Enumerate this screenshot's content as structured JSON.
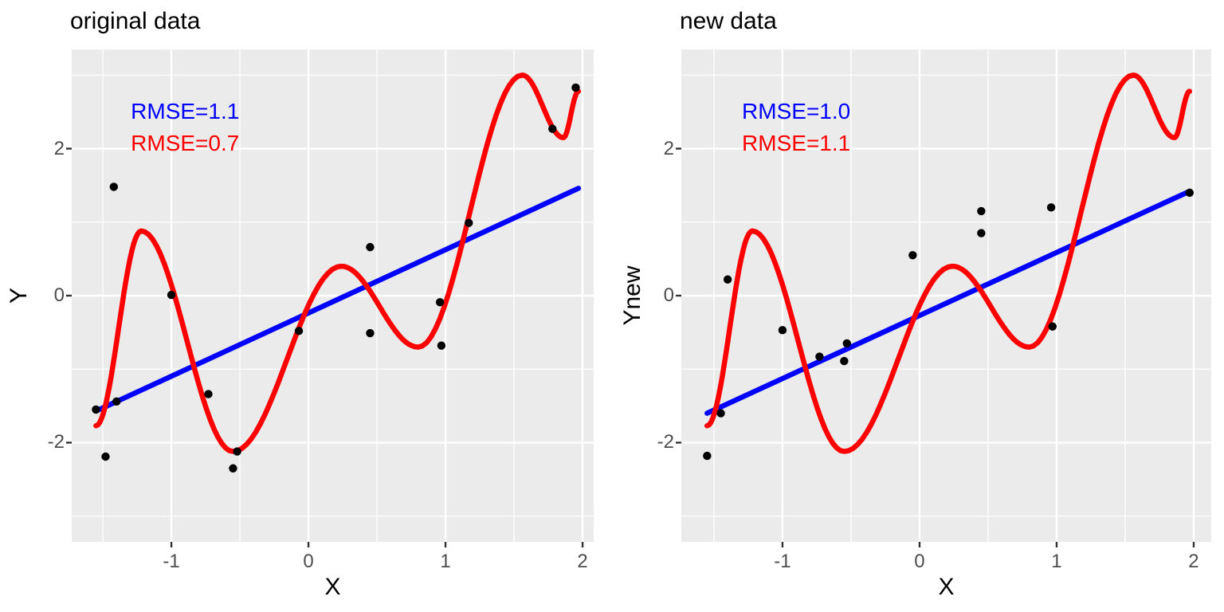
{
  "figure_style": {
    "background": "#FFFFFF",
    "panel_background": "#EBEBEB",
    "grid_color": "#FFFFFF",
    "axis_text_color": "#4D4D4D",
    "tick_mark_color": "#333333",
    "point_color": "#000000",
    "linear_fit_color": "#0000FF",
    "poly_fit_color": "#FF0000"
  },
  "chart_data": [
    {
      "type": "scatter",
      "title": "original data",
      "xlabel": "X",
      "ylabel": "Y",
      "xlim": [
        -1.727,
        2.081
      ],
      "ylim": [
        -3.35,
        3.35
      ],
      "grid": true,
      "legend": "none",
      "x_ticks": {
        "major": [
          {
            "v": -1,
            "label": "-1"
          },
          {
            "v": 0,
            "label": "0"
          },
          {
            "v": 1,
            "label": "1"
          },
          {
            "v": 2,
            "label": "2"
          }
        ],
        "minor": [
          -1.5,
          -0.5,
          0.5,
          1.5
        ]
      },
      "y_ticks": {
        "major": [
          {
            "v": -2,
            "label": "-2"
          },
          {
            "v": 0,
            "label": "0"
          },
          {
            "v": 2,
            "label": "2"
          }
        ],
        "minor": [
          -3,
          -1,
          1,
          3
        ]
      },
      "points": [
        [
          -1.42,
          1.48
        ],
        [
          -1.0,
          0.01
        ],
        [
          -1.55,
          -1.55
        ],
        [
          -1.4,
          -1.44
        ],
        [
          -1.48,
          -2.19
        ],
        [
          -0.73,
          -1.34
        ],
        [
          -0.52,
          -2.12
        ],
        [
          -0.55,
          -2.35
        ],
        [
          -0.07,
          -0.48
        ],
        [
          0.45,
          0.66
        ],
        [
          0.45,
          -0.51
        ],
        [
          0.96,
          -0.09
        ],
        [
          0.97,
          -0.68
        ],
        [
          1.17,
          0.99
        ],
        [
          1.78,
          2.27
        ],
        [
          1.95,
          2.83
        ]
      ],
      "fits": [
        {
          "name": "linear-fit",
          "color": "#0000FF",
          "rmse": 1.1,
          "line": [
            [
              -1.55,
              -1.57
            ],
            [
              1.97,
              1.46
            ]
          ]
        },
        {
          "name": "poly-fit",
          "color": "#FF0000",
          "rmse": 0.7,
          "curve_keypoints": [
            [
              -1.55,
              -1.77
            ],
            [
              -1.22,
              0.88
            ],
            [
              -0.55,
              -2.12
            ],
            [
              0.24,
              0.4
            ],
            [
              0.8,
              -0.7
            ],
            [
              1.56,
              3.0
            ],
            [
              1.86,
              2.15
            ],
            [
              1.97,
              2.78
            ]
          ]
        }
      ],
      "annotations": [
        {
          "text": "RMSE=1.1",
          "color": "#0000FF",
          "x": -0.9,
          "y": 2.5
        },
        {
          "text": "RMSE=0.7",
          "color": "#FF0000",
          "x": -0.9,
          "y": 2.07
        }
      ]
    },
    {
      "type": "scatter",
      "title": "new data",
      "xlabel": "X",
      "ylabel": "Ynew",
      "xlim": [
        -1.738,
        2.128
      ],
      "ylim": [
        -3.35,
        3.35
      ],
      "grid": true,
      "legend": "none",
      "x_ticks": {
        "major": [
          {
            "v": -1,
            "label": "-1"
          },
          {
            "v": 0,
            "label": "0"
          },
          {
            "v": 1,
            "label": "1"
          },
          {
            "v": 2,
            "label": "2"
          }
        ],
        "minor": [
          -1.5,
          -0.5,
          0.5,
          1.5
        ]
      },
      "y_ticks": {
        "major": [
          {
            "v": -2,
            "label": "-2"
          },
          {
            "v": 0,
            "label": "0"
          },
          {
            "v": 2,
            "label": "2"
          }
        ],
        "minor": [
          -3,
          -1,
          1,
          3
        ]
      },
      "points": [
        [
          -1.55,
          -2.18
        ],
        [
          -1.45,
          -1.6
        ],
        [
          -1.4,
          0.22
        ],
        [
          -1.0,
          -0.47
        ],
        [
          -0.73,
          -0.83
        ],
        [
          -0.55,
          -0.89
        ],
        [
          -0.53,
          -0.65
        ],
        [
          -0.05,
          0.55
        ],
        [
          0.45,
          1.15
        ],
        [
          0.45,
          0.85
        ],
        [
          0.96,
          1.2
        ],
        [
          0.97,
          -0.42
        ],
        [
          1.97,
          1.4
        ]
      ],
      "fits": [
        {
          "name": "linear-fit",
          "color": "#0000FF",
          "rmse": 1.0,
          "line": [
            [
              -1.55,
              -1.6
            ],
            [
              1.97,
              1.42
            ]
          ]
        },
        {
          "name": "poly-fit",
          "color": "#FF0000",
          "rmse": 1.1,
          "curve_keypoints": [
            [
              -1.55,
              -1.77
            ],
            [
              -1.22,
              0.88
            ],
            [
              -0.55,
              -2.12
            ],
            [
              0.24,
              0.4
            ],
            [
              0.8,
              -0.7
            ],
            [
              1.56,
              3.0
            ],
            [
              1.86,
              2.15
            ],
            [
              1.97,
              2.78
            ]
          ]
        }
      ],
      "annotations": [
        {
          "text": "RMSE=1.0",
          "color": "#0000FF",
          "x": -0.9,
          "y": 2.5
        },
        {
          "text": "RMSE=1.1",
          "color": "#FF0000",
          "x": -0.9,
          "y": 2.07
        }
      ]
    }
  ]
}
